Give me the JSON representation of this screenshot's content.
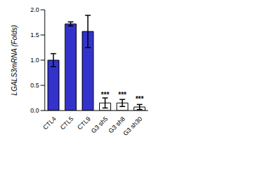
{
  "chart_data": {
    "type": "bar",
    "y_label": "LGALS3mRNA (Folds)",
    "categories": [
      "CTL4",
      "CTL5",
      "CTL9",
      "G3 sh5",
      "G3 sh8",
      "G3 sh30"
    ],
    "values": [
      1.0,
      1.72,
      1.57,
      0.15,
      0.15,
      0.07
    ],
    "errors": [
      0.13,
      0.04,
      0.32,
      0.1,
      0.07,
      0.05
    ],
    "annotations": [
      null,
      null,
      null,
      "***",
      "***",
      "***"
    ],
    "colors": [
      "#3333cc",
      "#3333cc",
      "#3333cc",
      "#ffffff",
      "#ffffff",
      "#ffffff"
    ],
    "ylim": [
      0,
      2
    ],
    "yticks": [
      {
        "value": 0,
        "label": "0.0"
      },
      {
        "value": 0.5,
        "label": "0.5"
      },
      {
        "value": 1,
        "label": "1.0"
      },
      {
        "value": 1.5,
        "label": "1.5"
      },
      {
        "value": 2,
        "label": "2.0"
      }
    ],
    "grid": false
  }
}
